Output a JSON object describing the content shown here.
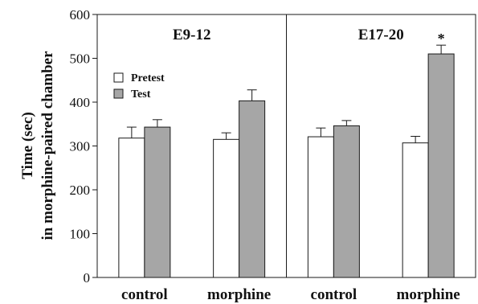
{
  "chart_data": {
    "type": "bar",
    "ylabel_line1": "Time (sec)",
    "ylabel_line2": "in morphine-paired chamber",
    "ylim": [
      0,
      600
    ],
    "yticks": [
      "0",
      "100",
      "200",
      "300",
      "400",
      "500",
      "600"
    ],
    "panels": [
      {
        "title": "E9-12",
        "categories": [
          "control",
          "morphine"
        ],
        "series": [
          {
            "name": "Pretest",
            "values": [
              318,
              315
            ],
            "errors": [
              25,
              15
            ]
          },
          {
            "name": "Test",
            "values": [
              343,
              403
            ],
            "errors": [
              17,
              25
            ]
          }
        ],
        "annotations": []
      },
      {
        "title": "E17-20",
        "categories": [
          "control",
          "morphine"
        ],
        "series": [
          {
            "name": "Pretest",
            "values": [
              321,
              307
            ],
            "errors": [
              20,
              15
            ]
          },
          {
            "name": "Test",
            "values": [
              346,
              510
            ],
            "errors": [
              12,
              20
            ]
          }
        ],
        "annotations": [
          {
            "category": "morphine",
            "series": "Test",
            "text": "*"
          }
        ]
      }
    ],
    "legend": {
      "position": "top-left",
      "entries": [
        "Pretest",
        "Test"
      ]
    },
    "colors": {
      "Pretest": "#ffffff",
      "Test": "#a6a6a6",
      "outline": "#1a1a1a"
    },
    "grid": false
  }
}
